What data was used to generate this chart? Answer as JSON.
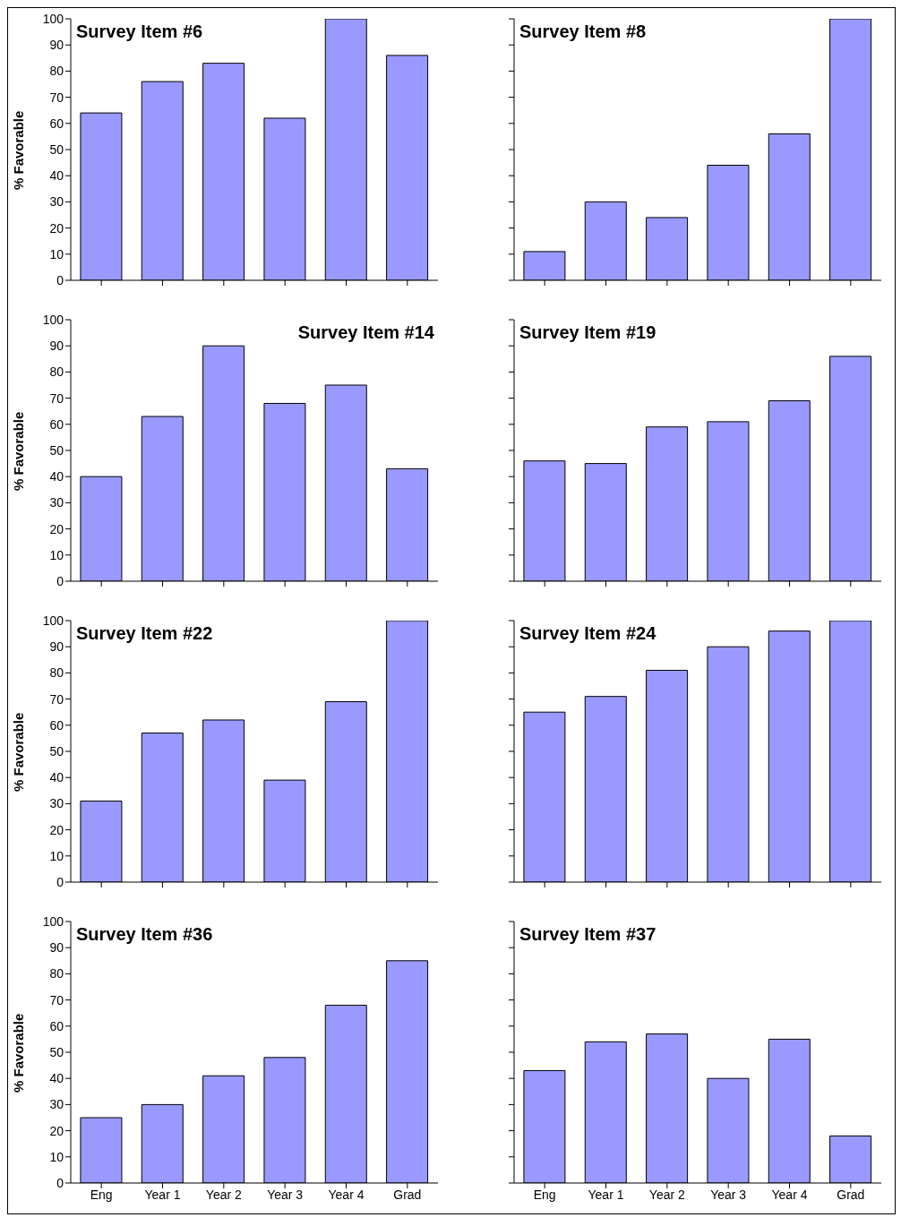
{
  "chart_data": [
    {
      "type": "bar",
      "title": "Survey Item #6",
      "ylabel": "% Favorable",
      "categories": [
        "Eng",
        "Year 1",
        "Year 2",
        "Year 3",
        "Year 4",
        "Grad"
      ],
      "values": [
        64,
        76,
        83,
        62,
        100,
        86
      ],
      "color": "#9999ff",
      "ylim": [
        0,
        100
      ],
      "yticks": [
        0,
        10,
        20,
        30,
        40,
        50,
        60,
        70,
        80,
        90,
        100
      ],
      "tick_labels": "y"
    },
    {
      "type": "bar",
      "title": "Survey Item #8",
      "categories": [
        "Eng",
        "Year 1",
        "Year 2",
        "Year 3",
        "Year 4",
        "Grad"
      ],
      "values": [
        11,
        30,
        24,
        44,
        56,
        100
      ],
      "color": "#9999ff",
      "ylim": [
        0,
        100
      ],
      "yticks": [
        0,
        10,
        20,
        30,
        40,
        50,
        60,
        70,
        80,
        90,
        100
      ],
      "tick_labels": false
    },
    {
      "type": "bar",
      "title": "Survey Item #14",
      "ylabel": "% Favorable",
      "categories": [
        "Eng",
        "Year 1",
        "Year 2",
        "Year 3",
        "Year 4",
        "Grad"
      ],
      "values": [
        40,
        63,
        90,
        68,
        75,
        43
      ],
      "color": "#9999ff",
      "ylim": [
        0,
        100
      ],
      "yticks": [
        0,
        10,
        20,
        30,
        40,
        50,
        60,
        70,
        80,
        90,
        100
      ],
      "tick_labels": "y"
    },
    {
      "type": "bar",
      "title": "Survey Item #19",
      "categories": [
        "Eng",
        "Year 1",
        "Year 2",
        "Year 3",
        "Year 4",
        "Grad"
      ],
      "values": [
        46,
        45,
        59,
        61,
        69,
        86
      ],
      "color": "#9999ff",
      "ylim": [
        0,
        100
      ],
      "yticks": [
        0,
        10,
        20,
        30,
        40,
        50,
        60,
        70,
        80,
        90,
        100
      ],
      "tick_labels": false
    },
    {
      "type": "bar",
      "title": "Survey Item #22",
      "ylabel": "% Favorable",
      "categories": [
        "Eng",
        "Year 1",
        "Year 2",
        "Year 3",
        "Year 4",
        "Grad"
      ],
      "values": [
        31,
        57,
        62,
        39,
        69,
        100
      ],
      "color": "#9999ff",
      "ylim": [
        0,
        100
      ],
      "yticks": [
        0,
        10,
        20,
        30,
        40,
        50,
        60,
        70,
        80,
        90,
        100
      ],
      "tick_labels": "y"
    },
    {
      "type": "bar",
      "title": "Survey Item #24",
      "categories": [
        "Eng",
        "Year 1",
        "Year 2",
        "Year 3",
        "Year 4",
        "Grad"
      ],
      "values": [
        65,
        71,
        81,
        90,
        96,
        100
      ],
      "color": "#9999ff",
      "ylim": [
        0,
        100
      ],
      "yticks": [
        0,
        10,
        20,
        30,
        40,
        50,
        60,
        70,
        80,
        90,
        100
      ],
      "tick_labels": false
    },
    {
      "type": "bar",
      "title": "Survey Item #36",
      "ylabel": "% Favorable",
      "categories": [
        "Eng",
        "Year 1",
        "Year 2",
        "Year 3",
        "Year 4",
        "Grad"
      ],
      "values": [
        25,
        30,
        41,
        48,
        68,
        85
      ],
      "color": "#9999ff",
      "ylim": [
        0,
        100
      ],
      "yticks": [
        0,
        10,
        20,
        30,
        40,
        50,
        60,
        70,
        80,
        90,
        100
      ]
    },
    {
      "type": "bar",
      "title": "Survey Item #37",
      "categories": [
        "Eng",
        "Year 1",
        "Year 2",
        "Year 3",
        "Year 4",
        "Grad"
      ],
      "values": [
        43,
        54,
        57,
        40,
        55,
        18
      ],
      "color": "#9999ff",
      "ylim": [
        0,
        100
      ],
      "yticks": [
        0,
        10,
        20,
        30,
        40,
        50,
        60,
        70,
        80,
        90,
        100
      ],
      "tick_labels": "x"
    }
  ]
}
